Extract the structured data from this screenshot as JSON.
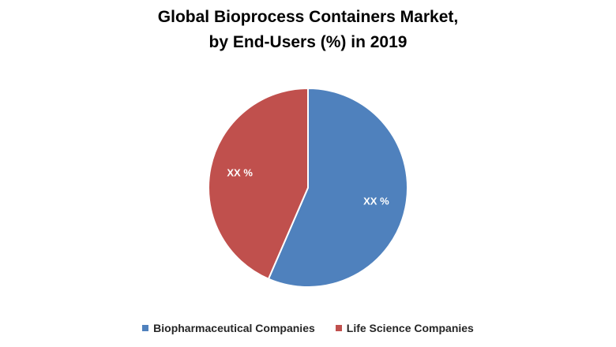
{
  "chart_data": {
    "type": "pie",
    "title_lines": [
      "Global Bioprocess Containers Market,",
      "by End-Users (%) in 2019"
    ],
    "slices": [
      {
        "name": "Biopharmaceutical Companies",
        "value": 56.5,
        "label": "XX %",
        "color": "#4F81BD"
      },
      {
        "name": "Life Science Companies",
        "value": 43.5,
        "label": "XX %",
        "color": "#C0504D"
      }
    ],
    "start_angle_deg": 0,
    "direction": "clockwise",
    "legend_position": "bottom"
  }
}
